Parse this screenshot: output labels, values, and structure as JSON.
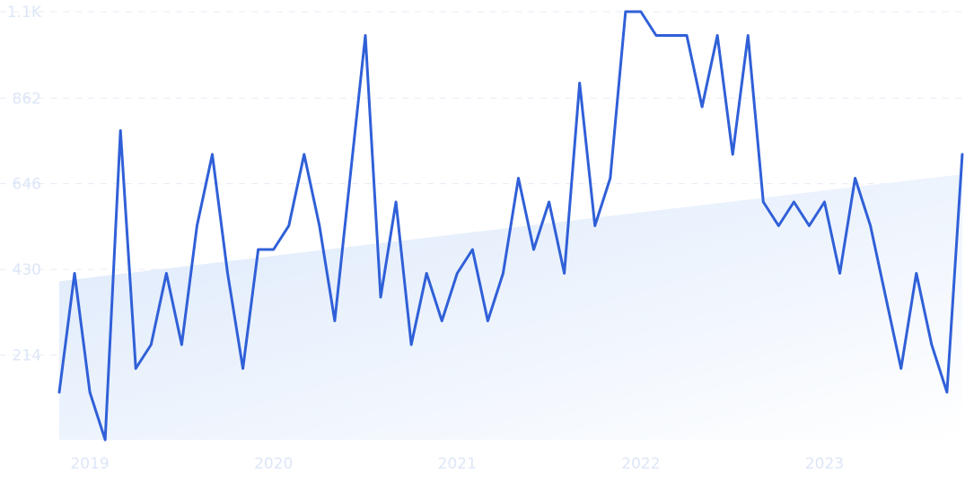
{
  "chart_data": {
    "type": "line",
    "title": "",
    "xlabel": "",
    "ylabel": "",
    "ylim": [
      0,
      1080
    ],
    "y_ticks": [
      214,
      430,
      646,
      862,
      1080
    ],
    "y_tick_labels": [
      "214",
      "430",
      "646",
      "862",
      "1.1K"
    ],
    "x_tick_labels": [
      "2019",
      "2020",
      "2021",
      "2022",
      "2023"
    ],
    "x_tick_dates": [
      "2019-01",
      "2020-01",
      "2021-01",
      "2022-01",
      "2023-01"
    ],
    "grid": true,
    "series": [
      {
        "color": "#3060d8",
        "x": [
          "2018-11",
          "2018-12",
          "2019-01",
          "2019-02",
          "2019-03",
          "2019-04",
          "2019-05",
          "2019-06",
          "2019-07",
          "2019-08",
          "2019-09",
          "2019-10",
          "2019-11",
          "2019-12",
          "2020-01",
          "2020-02",
          "2020-03",
          "2020-04",
          "2020-05",
          "2020-06",
          "2020-07",
          "2020-08",
          "2020-09",
          "2020-10",
          "2020-11",
          "2020-12",
          "2021-01",
          "2021-02",
          "2021-03",
          "2021-04",
          "2021-05",
          "2021-06",
          "2021-07",
          "2021-08",
          "2021-09",
          "2021-10",
          "2021-11",
          "2021-12",
          "2022-01",
          "2022-02",
          "2022-03",
          "2022-04",
          "2022-05",
          "2022-06",
          "2022-07",
          "2022-08",
          "2022-09",
          "2022-10",
          "2022-11",
          "2022-12",
          "2023-01",
          "2023-02",
          "2023-03",
          "2023-04",
          "2023-05",
          "2023-06",
          "2023-07",
          "2023-08",
          "2023-09",
          "2023-10"
        ],
        "values": [
          120,
          420,
          120,
          0,
          780,
          180,
          240,
          420,
          240,
          540,
          720,
          420,
          180,
          480,
          480,
          540,
          720,
          540,
          300,
          660,
          1020,
          360,
          600,
          240,
          420,
          300,
          420,
          480,
          300,
          420,
          660,
          480,
          600,
          420,
          900,
          540,
          660,
          1080,
          1080,
          1020,
          1020,
          1020,
          840,
          1020,
          720,
          1020,
          600,
          540,
          600,
          540,
          600,
          420,
          660,
          540,
          360,
          180,
          420,
          240,
          120,
          720
        ]
      }
    ],
    "trend": {
      "color": "#dbe8fb",
      "x": [
        "2018-11",
        "2023-10"
      ],
      "values": [
        400,
        670
      ]
    }
  }
}
